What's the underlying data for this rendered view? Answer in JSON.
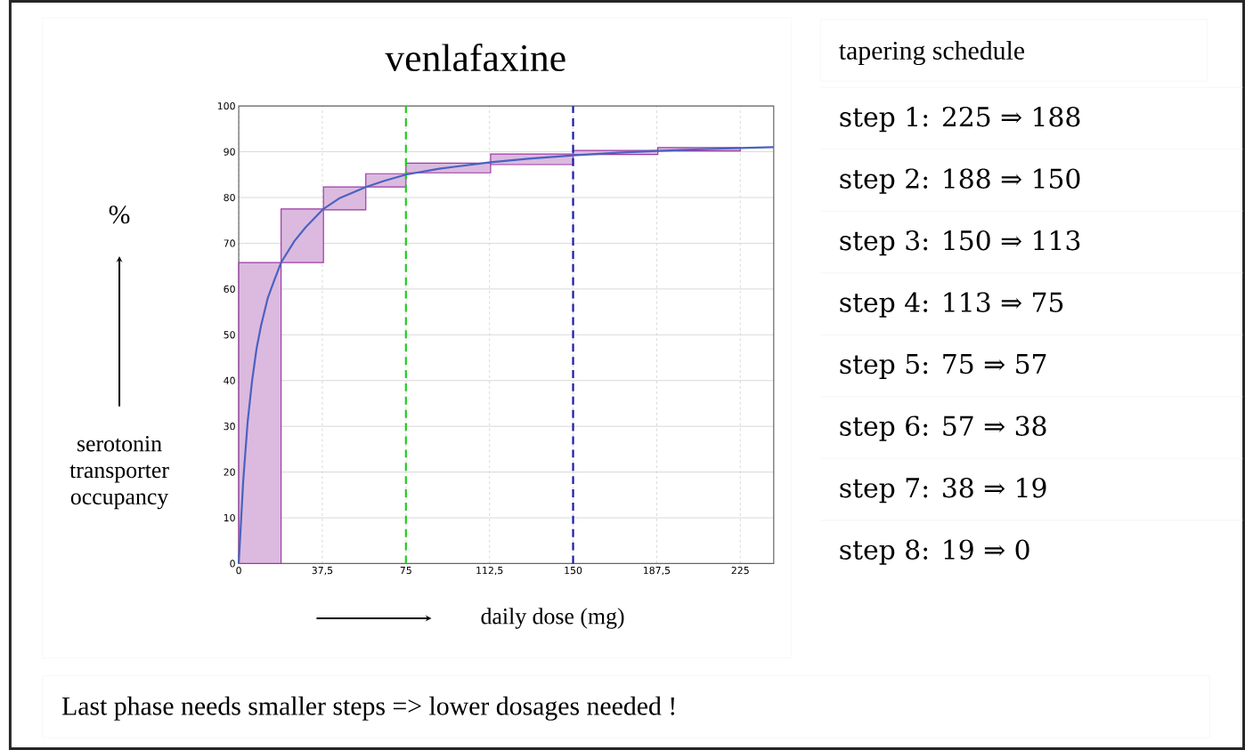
{
  "chart_data": [
    {
      "type": "line",
      "title": "venlafaxine",
      "xlabel": "daily dose (mg)",
      "ylabel": "serotonin transporter occupancy",
      "annotations": [
        "%",
        "Last phase needs smaller steps   =>   lower dosages needed !"
      ],
      "xlim": [
        0,
        240
      ],
      "ylim": [
        0,
        100
      ],
      "xticks": [
        0,
        {
          "value": 37.5,
          "label": "37,5"
        },
        75,
        {
          "value": 112.5,
          "label": "112,5"
        },
        150,
        {
          "value": 187.5,
          "label": "187,5"
        },
        225
      ],
      "yticks": [
        0,
        10,
        20,
        30,
        40,
        50,
        60,
        70,
        80,
        90,
        100
      ],
      "grid": true,
      "series": [
        {
          "type": "histogram",
          "color": "#9b3aa3",
          "bins": [
            0,
            19,
            38,
            57,
            75,
            113,
            150,
            188,
            225
          ],
          "base": [
            0,
            65.8,
            77.3,
            82.3,
            85.4,
            87.2,
            89.4,
            90.2
          ],
          "values": [
            65.8,
            11.7,
            5.0,
            2.9,
            2.1,
            2.3,
            0.9,
            0.7
          ]
        },
        {
          "type": "line",
          "color": "#4a62c0",
          "x": [
            0,
            2,
            4,
            6,
            8,
            10,
            13,
            16,
            19,
            25,
            30,
            38,
            45,
            57,
            65,
            75,
            90,
            113,
            130,
            150,
            170,
            188,
            205,
            225,
            240
          ],
          "values": [
            0,
            18,
            31,
            40,
            47,
            52,
            58,
            62,
            65.8,
            70.5,
            73.5,
            77.5,
            79.8,
            82.3,
            83.6,
            85,
            86.3,
            87.7,
            88.5,
            89.2,
            89.8,
            90.2,
            90.5,
            90.8,
            91
          ]
        }
      ],
      "ref_lines": [
        {
          "axis": "x",
          "value": 75,
          "color": "#22cc22",
          "line_style": "dashed"
        },
        {
          "axis": "x",
          "value": 150,
          "color": "#1a1aa0",
          "line_style": "dashed"
        }
      ]
    },
    {
      "type": "other",
      "title": "tapering schedule",
      "annotations": [
        "step 1:  225 ⇒ 188",
        "step 2:  188 ⇒ 150",
        "step 3:  150 ⇒ 113",
        "step 4:  113 ⇒ 75",
        "step 5:  75 ⇒ 57",
        "step 6:  57 ⇒ 38",
        "step 7:  38 ⇒ 19",
        "step 8:  19 ⇒ 0"
      ]
    }
  ]
}
